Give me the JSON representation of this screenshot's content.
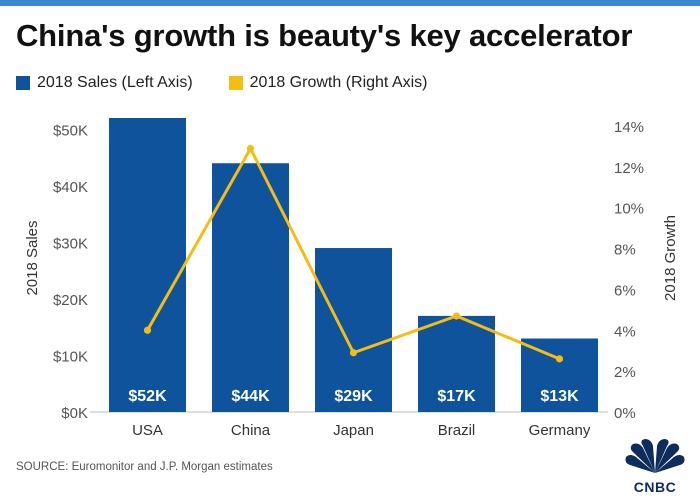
{
  "header": {
    "title": "China's growth is beauty's key accelerator"
  },
  "legend": {
    "items": [
      {
        "label": "2018 Sales (Left Axis)",
        "color": "#0e539b"
      },
      {
        "label": "2018 Growth (Right Axis)",
        "color": "#f5bd13"
      }
    ]
  },
  "chart_data": {
    "type": "bar",
    "categories": [
      "USA",
      "China",
      "Japan",
      "Brazil",
      "Germany"
    ],
    "series": [
      {
        "name": "2018 Sales (Left Axis)",
        "type": "bar",
        "axis": "left",
        "values": [
          52,
          44,
          29,
          17,
          13
        ],
        "data_labels": [
          "$52K",
          "$44K",
          "$29K",
          "$17K",
          "$13K"
        ],
        "color": "#0e539b"
      },
      {
        "name": "2018 Growth (Right Axis)",
        "type": "line",
        "axis": "right",
        "values": [
          4.0,
          12.9,
          2.9,
          4.7,
          2.6
        ],
        "color": "#f5bd13"
      }
    ],
    "y_left": {
      "label": "2018 Sales",
      "range": [
        0,
        52
      ],
      "ticks": [
        0,
        10,
        20,
        30,
        40,
        50
      ],
      "tick_labels": [
        "$0K",
        "$10K",
        "$20K",
        "$30K",
        "$40K",
        "$50K"
      ]
    },
    "y_right": {
      "label": "2018 Growth",
      "range": [
        0,
        14
      ],
      "ticks": [
        0,
        2,
        4,
        6,
        8,
        10,
        12,
        14
      ],
      "tick_labels": [
        "0%",
        "2%",
        "4%",
        "6%",
        "8%",
        "10%",
        "12%",
        "14%"
      ]
    },
    "grid": false,
    "legend_position": "top-left"
  },
  "footer": {
    "source": "SOURCE: Euromonitor and J.P. Morgan estimates",
    "logo_text": "CNBC"
  }
}
